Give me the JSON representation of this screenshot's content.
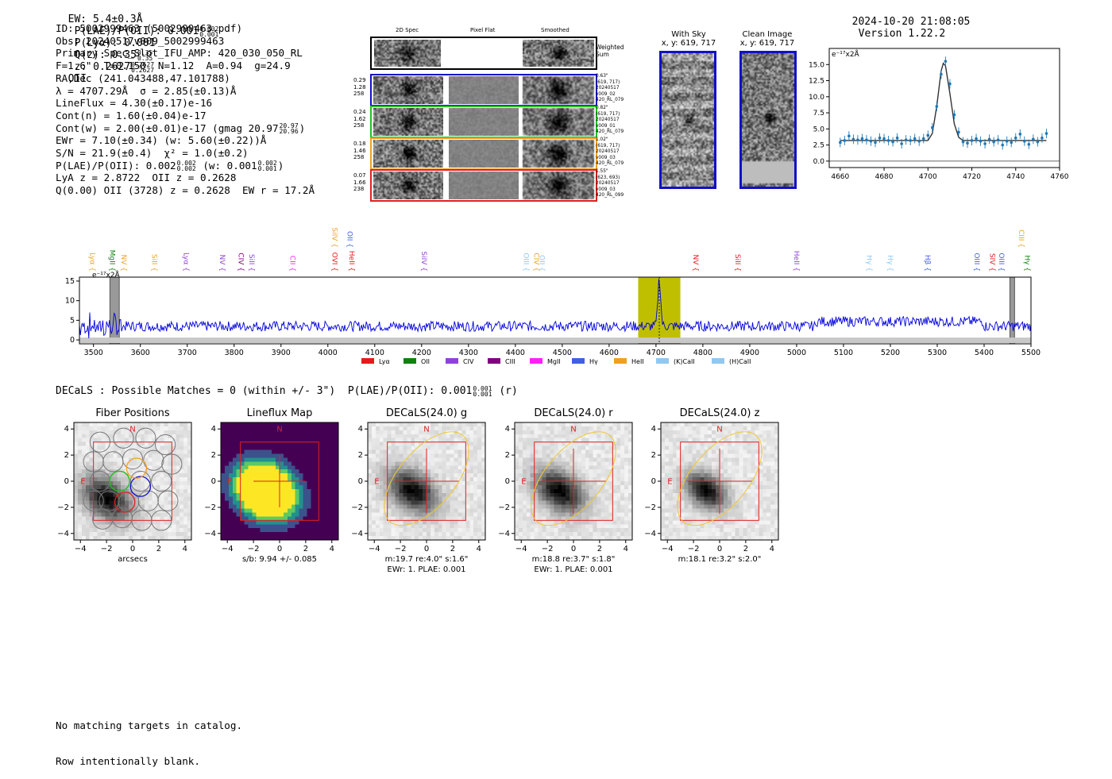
{
  "header": {
    "ew": "EW: 5.4±0.3Å",
    "plae_label": "P(LAE)/P(OII): 0.001",
    "plae_hi": "0.002",
    "plae_lo": "0.001",
    "plya": "P(Lyα): 0.001",
    "qz_label": "Q(z): 0.35",
    "qz_hi": "0.35",
    "qz_lo": "0.35",
    "z_label": "z: 0.2627",
    "z_hi": "0.2627",
    "z_lo": "0.2627",
    "z_line": "OII",
    "datetime": "2024-10-20 21:08:05",
    "version": "Version 1.22.2"
  },
  "info": {
    "id": "ID: 5002999463 (5002999463.pdf)",
    "obs": "Obs: 20240517v009_5002999463",
    "primary": "Primary Spec_Slot_IFU_AMP: 420_030_050_RL",
    "fparams": "F=1.6\"  T=0.150  N=1.12  A=0.94  g=24.9",
    "radec": "RA,Dec (241.043488,47.101788)",
    "lambda": "λ = 4707.29Å  σ = 2.85(±0.13)Å",
    "lineflux": "LineFlux = 4.30(±0.17)e-16",
    "contn": "Cont(n) = 1.60(±0.04)e-17",
    "contw": "Cont(w) = 2.00(±0.01)e-17 (gmag 20.97",
    "contw_hi": "20.97",
    "contw_lo": "20.96",
    "contw_end": ")",
    "ewr": "EWr = 7.10(±0.34) (w: 5.60(±0.22))Å",
    "sn": "S/N = 21.9(±0.4)  χ² = 1.0(±0.2)",
    "plae": "P(LAE)/P(OII): 0.002",
    "plae_hi": "0.002",
    "plae_lo": "0.002",
    "plae_w": "(w: 0.001",
    "plae_w_hi": "0.002",
    "plae_w_lo": "0.001",
    "plae_w_end": ")",
    "lya": "LyA z = 2.8722  OII z = 0.2628",
    "q": "Q(0.00) OII (3728) z = 0.2628  EW r = 17.2Å"
  },
  "cutouts": {
    "col_labels": [
      "2D Spec",
      "Pixel Flat",
      "Smoothed"
    ],
    "weighted_sum": "Weighted Sum",
    "rows": [
      {
        "left": [
          "0.29",
          "1.28",
          "258"
        ],
        "right": [
          "0.63\"",
          "(619, 717)",
          "20240517",
          "v009_02",
          "420_RL_079"
        ],
        "color": "#1010c8"
      },
      {
        "left": [
          "0.24",
          "1.62",
          "258"
        ],
        "right": [
          "0.82\"",
          "(619, 717)",
          "20240517",
          "v009_01",
          "420_RL_079"
        ],
        "color": "#20c020"
      },
      {
        "left": [
          "0.18",
          "1.46",
          "258"
        ],
        "right": [
          "1.02\"",
          "(619, 717)",
          "20240517",
          "v009_03",
          "420_RL_079"
        ],
        "color": "#f0a020"
      },
      {
        "left": [
          "0.07",
          "1.66",
          "238"
        ],
        "right": [
          "1.55\"",
          "(623, 693)",
          "20240517",
          "v009_03",
          "420_RL_099"
        ],
        "color": "#e02020"
      }
    ]
  },
  "sky": {
    "with_sky": "With Sky",
    "with_sky_xy": "x, y: 619, 717",
    "clean": "Clean Image",
    "clean_xy": "x, y: 619, 717"
  },
  "legend_lines": [
    {
      "label": "Lyα",
      "color": "#e41a1c"
    },
    {
      "label": "OII",
      "color": "#108010"
    },
    {
      "label": "CIV",
      "color": "#9040e0"
    },
    {
      "label": "CIII",
      "color": "#800080"
    },
    {
      "label": "MgII",
      "color": "#ff20ff"
    },
    {
      "label": "Hγ",
      "color": "#4060e0"
    },
    {
      "label": "HeII",
      "color": "#f0a020"
    },
    {
      "label": "(K)CaII",
      "color": "#90c8f0"
    },
    {
      "label": "(H)CaII",
      "color": "#90c8f0"
    }
  ],
  "line_markers": [
    {
      "label": "Lyα",
      "x": 3493,
      "color": "#f0a020",
      "tier": "low"
    },
    {
      "label": "MgII",
      "x": 3535,
      "color": "#108010",
      "tier": "low"
    },
    {
      "label": "NV",
      "x": 3560,
      "color": "#f0a020",
      "tier": "low"
    },
    {
      "label": "SiII",
      "x": 3625,
      "color": "#f0a020",
      "tier": "low"
    },
    {
      "label": "Lyα",
      "x": 3693,
      "color": "#9040e0",
      "tier": "low"
    },
    {
      "label": "NV",
      "x": 3770,
      "color": "#9040e0",
      "tier": "low"
    },
    {
      "label": "CIV",
      "x": 3810,
      "color": "#800080",
      "tier": "low"
    },
    {
      "label": "SiII",
      "x": 3833,
      "color": "#9040e0",
      "tier": "low"
    },
    {
      "label": "CII",
      "x": 3920,
      "color": "#ff20ff",
      "tier": "low"
    },
    {
      "label": "OVI",
      "x": 4010,
      "color": "#e41a1c",
      "tier": "low"
    },
    {
      "label": "SiIV",
      "x": 4010,
      "color": "#f0a020",
      "tier": "high"
    },
    {
      "label": "OII",
      "x": 4042,
      "color": "#4060e0",
      "tier": "high"
    },
    {
      "label": "HeII",
      "x": 4046,
      "color": "#e41a1c",
      "tier": "low"
    },
    {
      "label": "SiIV",
      "x": 4200,
      "color": "#9040e0",
      "tier": "low"
    },
    {
      "label": "OIII",
      "x": 4418,
      "color": "#90c8f0",
      "tier": "low"
    },
    {
      "label": "CIV",
      "x": 4440,
      "color": "#f0a020",
      "tier": "low"
    },
    {
      "label": "OII",
      "x": 4452,
      "color": "#90c8f0",
      "tier": "low"
    },
    {
      "label": "NV",
      "x": 4780,
      "color": "#e41a1c",
      "tier": "low"
    },
    {
      "label": "SiII",
      "x": 4870,
      "color": "#e41a1c",
      "tier": "low"
    },
    {
      "label": "HeII",
      "x": 4995,
      "color": "#9040e0",
      "tier": "low"
    },
    {
      "label": "Hγ",
      "x": 5150,
      "color": "#90c8f0",
      "tier": "low"
    },
    {
      "label": "Hγ",
      "x": 5195,
      "color": "#90c8f0",
      "tier": "low"
    },
    {
      "label": "Hβ",
      "x": 5275,
      "color": "#4060e0",
      "tier": "low"
    },
    {
      "label": "OIII",
      "x": 5380,
      "color": "#4060e0",
      "tier": "low"
    },
    {
      "label": "SIV",
      "x": 5413,
      "color": "#e41a1c",
      "tier": "low"
    },
    {
      "label": "OIII",
      "x": 5432,
      "color": "#4060e0",
      "tier": "low"
    },
    {
      "label": "CIII",
      "x": 5475,
      "color": "#f0a020",
      "tier": "high"
    },
    {
      "label": "Hγ",
      "x": 5487,
      "color": "#108010",
      "tier": "low"
    }
  ],
  "chart_data": [
    {
      "name": "zoom-spectrum",
      "type": "scatter",
      "ylabel": "e⁻¹⁷x2Å",
      "xlim": [
        4655,
        4760
      ],
      "ylim": [
        -1,
        17.5
      ],
      "xticks": [
        4660,
        4680,
        4700,
        4720,
        4740,
        4760
      ],
      "yticks": [
        0.0,
        2.5,
        5.0,
        7.5,
        10.0,
        12.5,
        15.0
      ],
      "x": [
        4660,
        4662,
        4664,
        4666,
        4668,
        4670,
        4672,
        4674,
        4676,
        4678,
        4680,
        4682,
        4684,
        4686,
        4688,
        4690,
        4692,
        4694,
        4696,
        4698,
        4700,
        4702,
        4704,
        4706,
        4708,
        4710,
        4712,
        4714,
        4716,
        4718,
        4720,
        4722,
        4724,
        4726,
        4728,
        4730,
        4732,
        4734,
        4736,
        4738,
        4740,
        4742,
        4744,
        4746,
        4748,
        4750,
        4752,
        4754
      ],
      "y": [
        2.9,
        3.2,
        3.9,
        3.4,
        3.3,
        3.5,
        3.3,
        3.1,
        2.9,
        3.6,
        3.5,
        3.2,
        3.0,
        3.6,
        2.7,
        3.3,
        3.2,
        3.5,
        3.1,
        3.5,
        4.0,
        5.2,
        8.5,
        13.5,
        15.5,
        12.0,
        7.2,
        4.5,
        3.0,
        2.8,
        3.2,
        3.5,
        3.1,
        2.7,
        3.4,
        3.0,
        3.3,
        2.5,
        3.1,
        2.9,
        3.6,
        4.2,
        3.1,
        2.6,
        3.4,
        3.0,
        3.6,
        4.3
      ],
      "fit_x": [
        4660,
        4700,
        4702,
        4704,
        4706,
        4707,
        4708,
        4710,
        4712,
        4714,
        4716,
        4754
      ],
      "fit_y": [
        3.2,
        3.2,
        4.3,
        8.5,
        14.0,
        15.2,
        14.8,
        10.5,
        5.8,
        3.7,
        3.2,
        3.2
      ]
    },
    {
      "name": "full-spectrum",
      "type": "line",
      "ylabel": "e⁻¹⁷x2Å",
      "xlim": [
        3470,
        5500
      ],
      "ylim": [
        -1,
        16
      ],
      "xticks": [
        3500,
        3600,
        3700,
        3800,
        3900,
        4000,
        4100,
        4200,
        4300,
        4400,
        4500,
        4600,
        4700,
        4800,
        4900,
        5000,
        5100,
        5200,
        5300,
        5400,
        5500
      ],
      "yticks": [
        0,
        5,
        10,
        15
      ],
      "highlight_range": [
        4662,
        4752
      ],
      "masked_ranges": [
        [
          3535,
          3555
        ],
        [
          5455,
          5465
        ]
      ],
      "peak_x": 4707,
      "peak_y": 15.5,
      "continuum": 3.5
    }
  ],
  "decals": {
    "summary": "DECaLS : Possible Matches = 0 (within +/- 3\")  P(LAE)/P(OII): 0.001",
    "summary_hi": "0.001",
    "summary_lo": "0.001",
    "summary_end": "(r)",
    "panels": [
      {
        "title": "Fiber Positions",
        "xlabel": "arcsecs",
        "caption2": ""
      },
      {
        "title": "Lineflux Map",
        "xlabel": "s/b: 9.94 +/- 0.085",
        "caption2": ""
      },
      {
        "title": "DECaLS(24.0) g",
        "xlabel": "m:19.7  re:4.0\"  s:1.6\"",
        "caption2": "EWr: 1. PLAE: 0.001"
      },
      {
        "title": "DECaLS(24.0) r",
        "xlabel": "m:18.8  re:3.7\"  s:1.8\"",
        "caption2": "EWr: 1. PLAE: 0.001"
      },
      {
        "title": "DECaLS(24.0) z",
        "xlabel": "m:18.1  re:3.2\"  s:2.0\"",
        "caption2": ""
      }
    ],
    "axis_ticks": [
      "−4",
      "−2",
      "0",
      "2",
      "4"
    ],
    "north": "N",
    "east": "E"
  },
  "footer": {
    "line1": "No matching targets in catalog.",
    "line2": "Row intentionally blank."
  }
}
